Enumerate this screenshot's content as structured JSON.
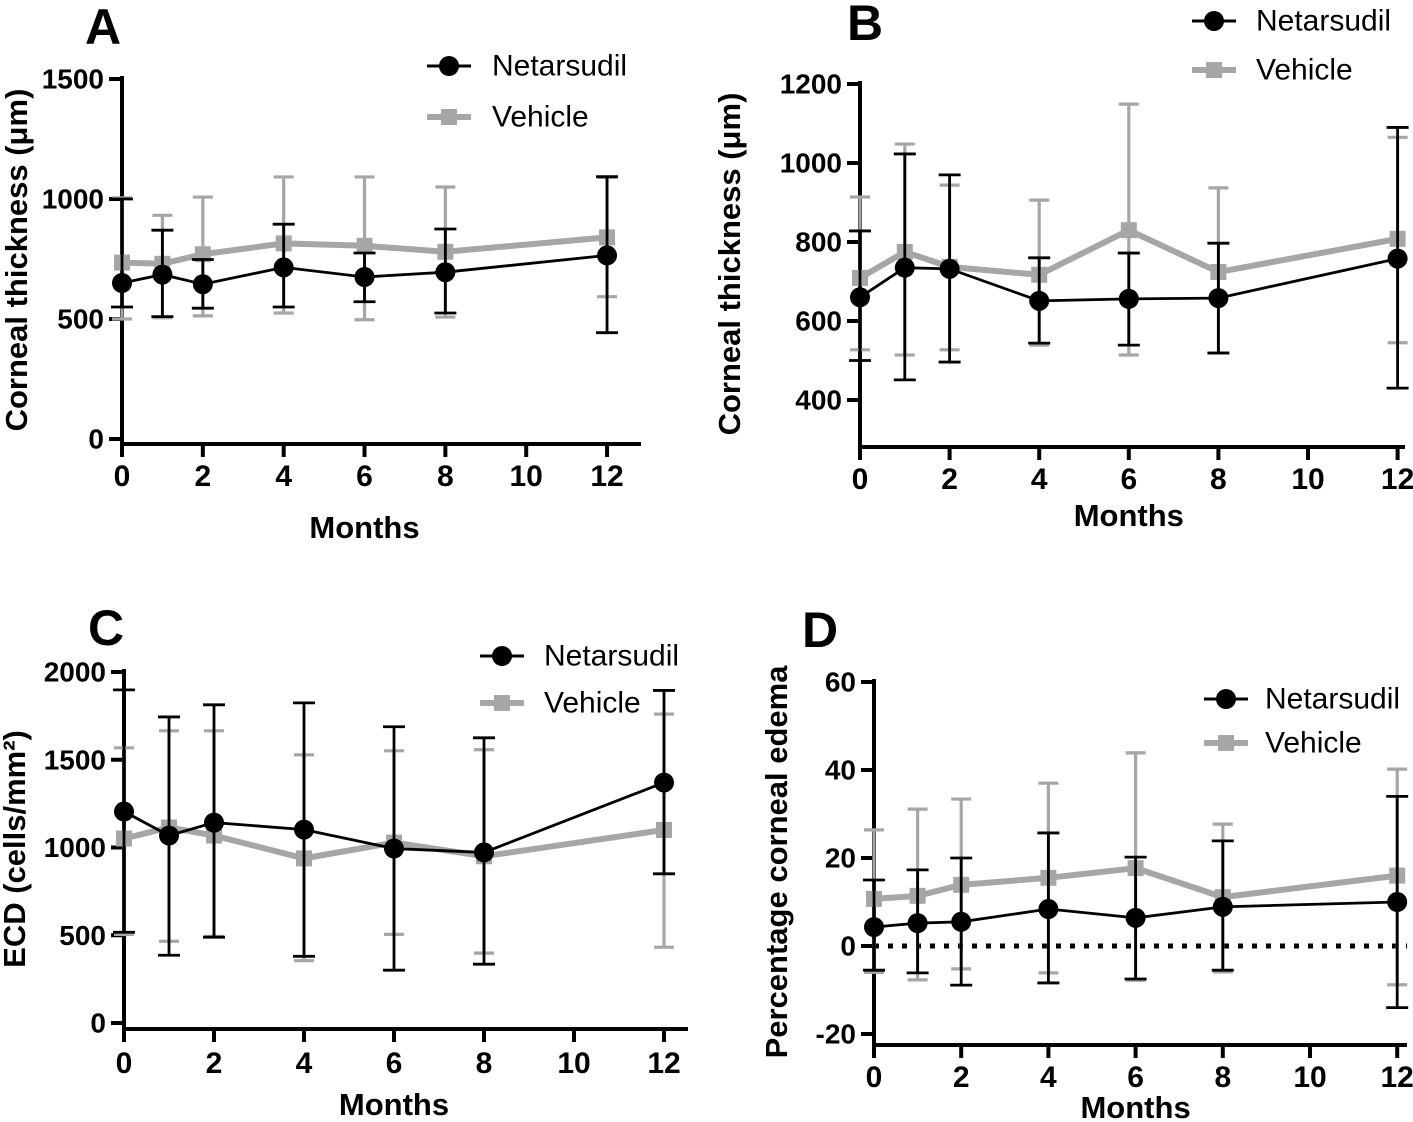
{
  "figure": {
    "description": "Four-panel line chart figure comparing Netarsudil vs Vehicle over 12 months",
    "panel_labels": [
      "A",
      "B",
      "C",
      "D"
    ],
    "colors": {
      "netarsudil": "#000000",
      "vehicle": "#a6a6a6",
      "background": "#ffffff",
      "axis": "#000000"
    },
    "legend_labels": [
      "Netarsudil",
      "Vehicle"
    ]
  },
  "chart_data": [
    {
      "id": "A",
      "type": "line",
      "panel_label": "A",
      "xlabel": "Months",
      "ylabel": "Corneal thickness (μm)",
      "x_ticks": [
        0,
        2,
        4,
        6,
        8,
        10,
        12
      ],
      "y_ticks": [
        0,
        500,
        1000,
        1500
      ],
      "xlim": [
        0,
        12
      ],
      "ylim": [
        0,
        1500
      ],
      "grid": false,
      "legend_position": "top-right-inside",
      "x": [
        0,
        1,
        2,
        4,
        6,
        8,
        12
      ],
      "series": [
        {
          "name": "Netarsudil",
          "marker": "circle",
          "color": "#000000",
          "values": [
            650,
            685,
            645,
            715,
            675,
            695,
            765
          ],
          "err_low": [
            550,
            510,
            545,
            550,
            572,
            525,
            443
          ],
          "err_high": [
            1000,
            870,
            748,
            895,
            775,
            875,
            1093
          ]
        },
        {
          "name": "Vehicle",
          "marker": "square",
          "color": "#a6a6a6",
          "values": [
            735,
            730,
            770,
            815,
            805,
            780,
            840
          ],
          "err_low": [
            500,
            505,
            513,
            525,
            497,
            508,
            593
          ],
          "err_high": [
            1005,
            932,
            1008,
            1092,
            1092,
            1050,
            1090
          ]
        }
      ]
    },
    {
      "id": "B",
      "type": "line",
      "panel_label": "B",
      "xlabel": "Months",
      "ylabel": "Corneal thickness (μm)",
      "x_ticks": [
        0,
        2,
        4,
        6,
        8,
        10,
        12
      ],
      "y_ticks": [
        400,
        600,
        800,
        1000,
        1200
      ],
      "xlim": [
        0,
        12
      ],
      "ylim": [
        400,
        1200
      ],
      "grid": false,
      "legend_position": "top-right-inside",
      "x": [
        0,
        1,
        2,
        4,
        6,
        8,
        12
      ],
      "series": [
        {
          "name": "Netarsudil",
          "marker": "circle",
          "color": "#000000",
          "values": [
            660,
            735,
            732,
            651,
            656,
            658,
            758
          ],
          "err_low": [
            500,
            451,
            496,
            544,
            539,
            519,
            430
          ],
          "err_high": [
            828,
            1023,
            970,
            760,
            772,
            797,
            1090
          ]
        },
        {
          "name": "Vehicle",
          "marker": "square",
          "color": "#a6a6a6",
          "values": [
            709,
            775,
            737,
            717,
            830,
            724,
            808
          ],
          "err_low": [
            527,
            514,
            527,
            539,
            514,
            519,
            545
          ],
          "err_high": [
            914,
            1048,
            944,
            906,
            1149,
            937,
            1065
          ]
        }
      ]
    },
    {
      "id": "C",
      "type": "line",
      "panel_label": "C",
      "xlabel": "Months",
      "ylabel": "ECD (cells/mm²)",
      "x_ticks": [
        0,
        2,
        4,
        6,
        8,
        10,
        12
      ],
      "y_ticks": [
        0,
        500,
        1000,
        1500,
        2000
      ],
      "xlim": [
        0,
        12
      ],
      "ylim": [
        0,
        2000
      ],
      "grid": false,
      "legend_position": "top-right-inside",
      "x": [
        0,
        1,
        2,
        4,
        6,
        8,
        12
      ],
      "series": [
        {
          "name": "Netarsudil",
          "marker": "circle",
          "color": "#000000",
          "values": [
            1205,
            1068,
            1142,
            1102,
            994,
            972,
            1370
          ],
          "err_low": [
            517,
            386,
            489,
            380,
            301,
            335,
            850
          ],
          "err_high": [
            1898,
            1744,
            1813,
            1824,
            1688,
            1625,
            1895
          ]
        },
        {
          "name": "Vehicle",
          "marker": "square",
          "color": "#a6a6a6",
          "values": [
            1051,
            1114,
            1068,
            938,
            1028,
            950,
            1100
          ],
          "err_low": [
            505,
            466,
            494,
            355,
            505,
            398,
            432
          ],
          "err_high": [
            1568,
            1665,
            1665,
            1528,
            1551,
            1557,
            1760
          ]
        }
      ]
    },
    {
      "id": "D",
      "type": "line",
      "panel_label": "D",
      "xlabel": "Months",
      "ylabel": "Percentage corneal edema",
      "x_ticks": [
        0,
        2,
        4,
        6,
        8,
        10,
        12
      ],
      "y_ticks": [
        -20,
        0,
        20,
        40,
        60
      ],
      "xlim": [
        0,
        12
      ],
      "ylim": [
        -20,
        60
      ],
      "grid": false,
      "zero_line": true,
      "legend_position": "top-right-inside",
      "x": [
        0,
        1,
        2,
        4,
        6,
        8,
        12
      ],
      "series": [
        {
          "name": "Netarsudil",
          "marker": "circle",
          "color": "#000000",
          "values": [
            4.3,
            5.2,
            5.5,
            8.4,
            6.4,
            8.9,
            10.0
          ],
          "err_low": [
            -5.5,
            -6.1,
            -8.9,
            -8.4,
            -7.5,
            -5.5,
            -14.0
          ],
          "err_high": [
            15.0,
            17.3,
            20.0,
            25.7,
            20.2,
            23.9,
            34.0
          ]
        },
        {
          "name": "Vehicle",
          "marker": "square",
          "color": "#a6a6a6",
          "values": [
            10.7,
            11.4,
            13.9,
            15.5,
            17.7,
            11.1,
            16.0
          ],
          "err_low": [
            -6.0,
            -7.7,
            -5.2,
            -6.1,
            -7.8,
            -5.9,
            -8.8
          ],
          "err_high": [
            26.4,
            31.1,
            33.4,
            37.0,
            43.9,
            27.7,
            40.2
          ]
        }
      ]
    }
  ]
}
